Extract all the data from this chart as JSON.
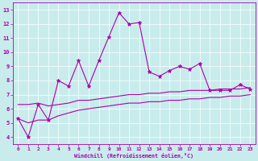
{
  "xlabel": "Windchill (Refroidissement éolien,°C)",
  "x_values": [
    0,
    1,
    2,
    3,
    4,
    5,
    6,
    7,
    8,
    9,
    10,
    11,
    12,
    13,
    14,
    15,
    16,
    17,
    18,
    19,
    20,
    21,
    22,
    23
  ],
  "line1_y": [
    5.3,
    4.0,
    6.3,
    5.2,
    8.0,
    7.6,
    9.4,
    7.6,
    9.4,
    11.1,
    12.8,
    12.0,
    12.1,
    8.6,
    8.3,
    8.7,
    9.0,
    8.8,
    9.2,
    7.3,
    7.3,
    7.3,
    7.7,
    7.4
  ],
  "line2_y": [
    6.3,
    6.3,
    6.4,
    6.2,
    6.3,
    6.4,
    6.6,
    6.6,
    6.7,
    6.8,
    6.9,
    7.0,
    7.0,
    7.1,
    7.1,
    7.2,
    7.2,
    7.3,
    7.3,
    7.3,
    7.4,
    7.4,
    7.4,
    7.5
  ],
  "line3_y": [
    5.3,
    5.0,
    5.2,
    5.2,
    5.5,
    5.7,
    5.9,
    6.0,
    6.1,
    6.2,
    6.3,
    6.4,
    6.4,
    6.5,
    6.5,
    6.6,
    6.6,
    6.7,
    6.7,
    6.8,
    6.8,
    6.9,
    6.9,
    7.0
  ],
  "line_color": "#aa00aa",
  "bg_color": "#c8ecec",
  "grid_color": "#ffffff",
  "ylim": [
    3.5,
    13.5
  ],
  "yticks": [
    4,
    5,
    6,
    7,
    8,
    9,
    10,
    11,
    12,
    13
  ],
  "xlim": [
    -0.5,
    23.5
  ],
  "xticks": [
    0,
    1,
    2,
    3,
    4,
    5,
    6,
    7,
    8,
    9,
    10,
    11,
    12,
    13,
    14,
    15,
    16,
    17,
    18,
    19,
    20,
    21,
    22,
    23
  ]
}
